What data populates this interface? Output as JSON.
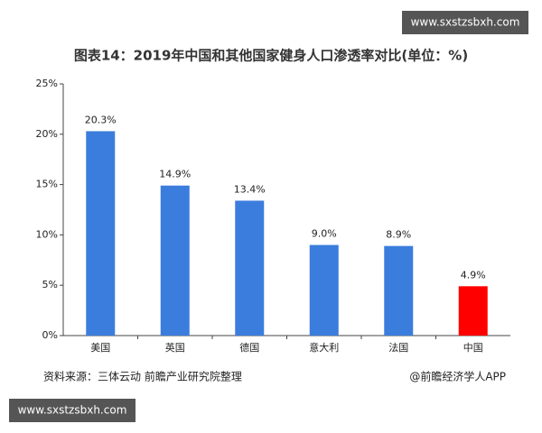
{
  "watermark": "www.sxstzsbxh.com",
  "source": "资料来源：三体云动 前瞻产业研究院整理",
  "credit": "@前瞻经济学人APP",
  "chart_data": {
    "type": "bar",
    "title": "图表14：2019年中国和其他国家健身人口渗透率对比(单位：%)",
    "categories": [
      "美国",
      "英国",
      "德国",
      "意大利",
      "法国",
      "中国"
    ],
    "values": [
      20.3,
      14.9,
      13.4,
      9.0,
      8.9,
      4.9
    ],
    "value_labels": [
      "20.3%",
      "14.9%",
      "13.4%",
      "9.0%",
      "8.9%",
      "4.9%"
    ],
    "colors": [
      "#3b7ddd",
      "#3b7ddd",
      "#3b7ddd",
      "#3b7ddd",
      "#3b7ddd",
      "#ff0000"
    ],
    "ylim": [
      0,
      25
    ],
    "yticks": [
      {
        "value": 0,
        "label": "0%"
      },
      {
        "value": 5,
        "label": "5%"
      },
      {
        "value": 10,
        "label": "10%"
      },
      {
        "value": 15,
        "label": "15%"
      },
      {
        "value": 20,
        "label": "20%"
      },
      {
        "value": 25,
        "label": "25%"
      }
    ],
    "grid": false
  }
}
